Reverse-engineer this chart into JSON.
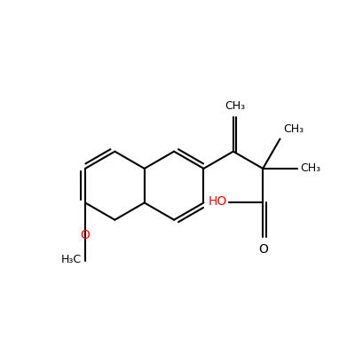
{
  "bg_color": "#ffffff",
  "bond_color": "#000000",
  "oxygen_color": "#ff0000",
  "line_width": 1.5,
  "font_size": 9,
  "fig_size": [
    4.0,
    4.0
  ],
  "dpi": 100,
  "xlim": [
    -2.1,
    2.2
  ],
  "ylim": [
    -1.6,
    1.6
  ]
}
